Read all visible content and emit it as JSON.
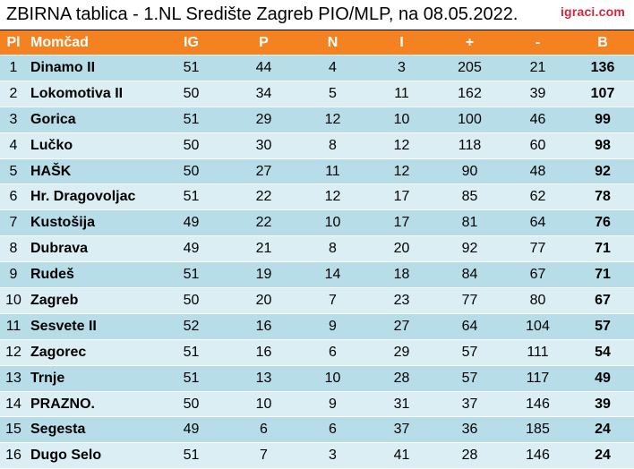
{
  "header": {
    "title": "ZBIRNA tablica - 1.NL Središte Zagreb PIO/MLP, na 08.05.2022.",
    "brand": "igraci.com"
  },
  "table": {
    "columns": [
      "Pl",
      "Momčad",
      "IG",
      "P",
      "N",
      "I",
      "+",
      "-",
      "B"
    ],
    "rows": [
      [
        "1",
        "Dinamo II",
        "51",
        "44",
        "4",
        "3",
        "205",
        "21",
        "136"
      ],
      [
        "2",
        "Lokomotiva II",
        "50",
        "34",
        "5",
        "11",
        "162",
        "39",
        "107"
      ],
      [
        "3",
        "Gorica",
        "51",
        "29",
        "12",
        "10",
        "100",
        "46",
        "99"
      ],
      [
        "4",
        "Lučko",
        "50",
        "30",
        "8",
        "12",
        "118",
        "60",
        "98"
      ],
      [
        "5",
        "HAŠK",
        "50",
        "27",
        "11",
        "12",
        "90",
        "48",
        "92"
      ],
      [
        "6",
        "Hr. Dragovoljac",
        "51",
        "22",
        "12",
        "17",
        "85",
        "62",
        "78"
      ],
      [
        "7",
        "Kustošija",
        "49",
        "22",
        "10",
        "17",
        "81",
        "64",
        "76"
      ],
      [
        "8",
        "Dubrava",
        "49",
        "21",
        "8",
        "20",
        "92",
        "77",
        "71"
      ],
      [
        "9",
        "Rudeš",
        "51",
        "19",
        "14",
        "18",
        "84",
        "67",
        "71"
      ],
      [
        "10",
        "Zagreb",
        "50",
        "20",
        "7",
        "23",
        "77",
        "80",
        "67"
      ],
      [
        "11",
        "Sesvete II",
        "52",
        "16",
        "9",
        "27",
        "64",
        "104",
        "57"
      ],
      [
        "12",
        "Zagorec",
        "51",
        "16",
        "6",
        "29",
        "57",
        "111",
        "54"
      ],
      [
        "13",
        "Trnje",
        "51",
        "13",
        "10",
        "28",
        "57",
        "117",
        "49"
      ],
      [
        "14",
        "PRAZNO.",
        "50",
        "10",
        "9",
        "31",
        "37",
        "146",
        "39"
      ],
      [
        "15",
        "Segesta",
        "49",
        "6",
        "6",
        "37",
        "36",
        "185",
        "24"
      ],
      [
        "16",
        "Dugo Selo",
        "51",
        "7",
        "3",
        "41",
        "28",
        "146",
        "24"
      ]
    ]
  },
  "colors": {
    "header_bg": "#f58220",
    "row_odd": "#b7dde8",
    "row_even": "#daeef3",
    "brand": "#d4253a"
  }
}
